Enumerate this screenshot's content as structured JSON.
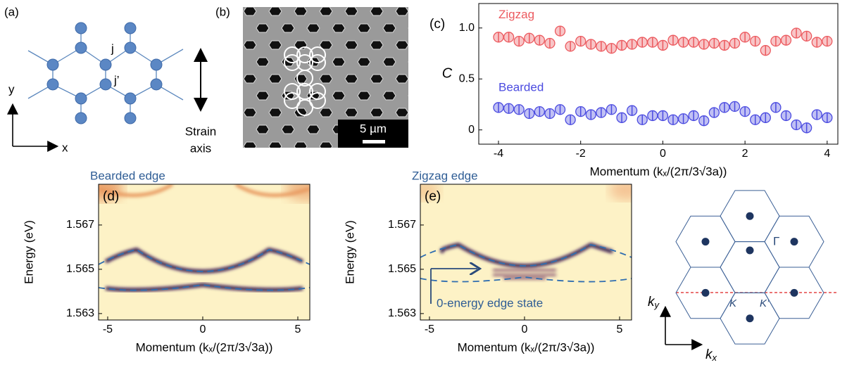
{
  "panel_a": {
    "label": "(a)",
    "j": "j",
    "j_prime": "j’",
    "y": "y",
    "x": "x",
    "strain": "Strain",
    "axis": "axis"
  },
  "panel_b": {
    "label": "(b)",
    "scale": "5 µm"
  },
  "panel_bz": {
    "gamma": "Γ",
    "k": "K",
    "k_prime": "K’",
    "ky": {
      "base": "k",
      "sub": "y"
    },
    "kx": {
      "base": "k",
      "sub": "x"
    }
  },
  "chart_data": [
    {
      "type": "scatter",
      "label": "(c)",
      "ylabel": "C",
      "xlabel": "Momentum (kₓ/(2π/3√3a))",
      "x": [
        -4,
        -3.75,
        -3.5,
        -3.25,
        -3,
        -2.75,
        -2.5,
        -2.25,
        -2,
        -1.75,
        -1.5,
        -1.25,
        -1,
        -0.75,
        -0.5,
        -0.25,
        0,
        0.25,
        0.5,
        0.75,
        1,
        1.25,
        1.5,
        1.75,
        2,
        2.25,
        2.5,
        2.75,
        3,
        3.25,
        3.5,
        3.75,
        4
      ],
      "series": [
        {
          "name": "Zigzag",
          "color": "#ec5a5f",
          "error": 0.05,
          "values": [
            0.91,
            0.91,
            0.87,
            0.9,
            0.88,
            0.85,
            0.97,
            0.82,
            0.87,
            0.84,
            0.82,
            0.8,
            0.83,
            0.84,
            0.86,
            0.86,
            0.83,
            0.88,
            0.86,
            0.86,
            0.84,
            0.85,
            0.83,
            0.85,
            0.91,
            0.87,
            0.78,
            0.87,
            0.88,
            0.95,
            0.92,
            0.86,
            0.87
          ]
        },
        {
          "name": "Bearded",
          "color": "#4b4be0",
          "error": 0.05,
          "values": [
            0.22,
            0.21,
            0.2,
            0.16,
            0.18,
            0.16,
            0.2,
            0.1,
            0.18,
            0.15,
            0.17,
            0.2,
            0.12,
            0.19,
            0.1,
            0.14,
            0.14,
            0.1,
            0.11,
            0.14,
            0.09,
            0.17,
            0.22,
            0.23,
            0.18,
            0.1,
            0.12,
            0.22,
            0.14,
            0.05,
            0.02,
            0.15,
            0.12
          ]
        }
      ],
      "xlim": [
        -4.48,
        4.26
      ],
      "ylim": [
        -0.14,
        1.24
      ],
      "xticks": [
        -4,
        -2,
        0,
        2,
        4
      ],
      "yticks": [
        0,
        0.5,
        {
          "value": 1,
          "label": "1.0"
        }
      ]
    },
    {
      "type": "heatmap",
      "label": "(d)",
      "title": "Bearded edge",
      "ylabel": "Energy (eV)",
      "xlabel": "Momentum (kₓ/(2π/3√3a))",
      "xlim": [
        -5.48,
        5.63
      ],
      "ylim": [
        1.56271,
        1.56884
      ],
      "xticks": [
        -5,
        0,
        5
      ],
      "yticks": [
        1.563,
        1.565,
        1.567
      ]
    },
    {
      "type": "heatmap",
      "label": "(e)",
      "title": "Zigzag edge",
      "ylabel": "Energy (eV)",
      "xlabel": "Momentum (kₓ/(2π/3√3a))",
      "annotation": "0-energy edge state",
      "xlim": [
        -5.48,
        5.63
      ],
      "ylim": [
        1.56271,
        1.56884
      ],
      "xticks": [
        -5,
        0,
        5
      ],
      "yticks": [
        1.563,
        1.565,
        1.567
      ]
    }
  ]
}
